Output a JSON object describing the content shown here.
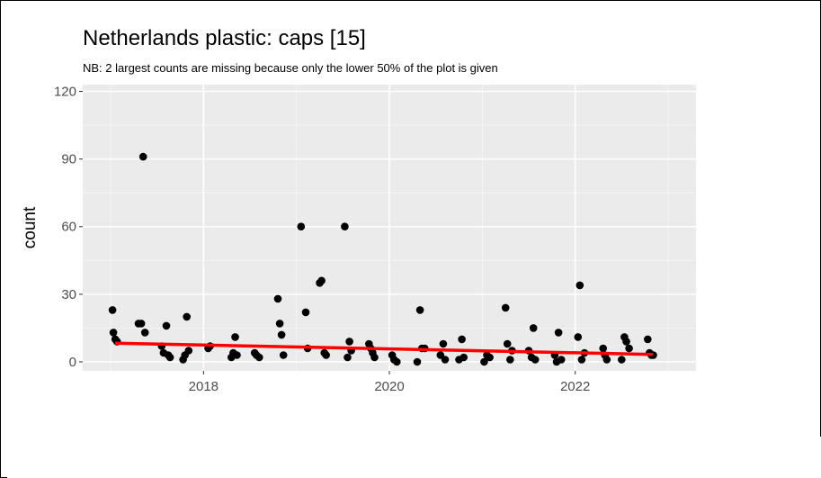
{
  "chart_data": {
    "type": "scatter",
    "title": "Netherlands  plastic: caps [15]",
    "subtitle": "NB: 2 largest counts are missing because only the lower 50% of the plot is given",
    "xlabel": "",
    "ylabel": "count",
    "xlim": [
      2016.7,
      2023.3
    ],
    "ylim": [
      -4,
      123
    ],
    "x_ticks": [
      2018,
      2020,
      2022
    ],
    "x_tick_labels": [
      "2018",
      "2020",
      "2022"
    ],
    "y_ticks": [
      0,
      30,
      60,
      90,
      120
    ],
    "y_tick_labels": [
      "0",
      "30",
      "60",
      "90",
      "120"
    ],
    "grid": true,
    "panel_background": "#ebebeb",
    "point_color": "#000000",
    "trend_color": "#ff0000",
    "points": [
      [
        2017.02,
        23
      ],
      [
        2017.03,
        13
      ],
      [
        2017.05,
        10
      ],
      [
        2017.07,
        9
      ],
      [
        2017.3,
        17
      ],
      [
        2017.33,
        17
      ],
      [
        2017.35,
        91
      ],
      [
        2017.37,
        13
      ],
      [
        2017.55,
        7
      ],
      [
        2017.57,
        4
      ],
      [
        2017.6,
        16
      ],
      [
        2017.62,
        3
      ],
      [
        2017.64,
        2
      ],
      [
        2017.78,
        1
      ],
      [
        2017.8,
        3
      ],
      [
        2017.82,
        20
      ],
      [
        2017.84,
        5
      ],
      [
        2018.05,
        6
      ],
      [
        2018.07,
        7
      ],
      [
        2018.3,
        2
      ],
      [
        2018.32,
        4
      ],
      [
        2018.34,
        11
      ],
      [
        2018.36,
        3
      ],
      [
        2018.55,
        4
      ],
      [
        2018.57,
        3
      ],
      [
        2018.6,
        2
      ],
      [
        2018.8,
        28
      ],
      [
        2018.82,
        17
      ],
      [
        2018.84,
        12
      ],
      [
        2018.86,
        3
      ],
      [
        2019.05,
        60
      ],
      [
        2019.1,
        22
      ],
      [
        2019.12,
        6
      ],
      [
        2019.25,
        35
      ],
      [
        2019.27,
        36
      ],
      [
        2019.3,
        4
      ],
      [
        2019.32,
        3
      ],
      [
        2019.52,
        60
      ],
      [
        2019.55,
        2
      ],
      [
        2019.57,
        9
      ],
      [
        2019.59,
        5
      ],
      [
        2019.78,
        8
      ],
      [
        2019.8,
        6
      ],
      [
        2019.82,
        4
      ],
      [
        2019.84,
        2
      ],
      [
        2020.03,
        3
      ],
      [
        2020.05,
        1
      ],
      [
        2020.08,
        0
      ],
      [
        2020.3,
        0
      ],
      [
        2020.33,
        23
      ],
      [
        2020.35,
        6
      ],
      [
        2020.38,
        6
      ],
      [
        2020.55,
        3
      ],
      [
        2020.58,
        8
      ],
      [
        2020.6,
        1
      ],
      [
        2020.75,
        1
      ],
      [
        2020.78,
        10
      ],
      [
        2020.8,
        2
      ],
      [
        2021.02,
        0
      ],
      [
        2021.05,
        3
      ],
      [
        2021.08,
        2
      ],
      [
        2021.25,
        24
      ],
      [
        2021.27,
        8
      ],
      [
        2021.3,
        1
      ],
      [
        2021.32,
        5
      ],
      [
        2021.5,
        5
      ],
      [
        2021.53,
        2
      ],
      [
        2021.55,
        15
      ],
      [
        2021.57,
        1
      ],
      [
        2021.78,
        3
      ],
      [
        2021.8,
        0
      ],
      [
        2021.82,
        13
      ],
      [
        2021.85,
        1
      ],
      [
        2022.03,
        11
      ],
      [
        2022.05,
        34
      ],
      [
        2022.07,
        1
      ],
      [
        2022.1,
        4
      ],
      [
        2022.3,
        6
      ],
      [
        2022.32,
        3
      ],
      [
        2022.34,
        1
      ],
      [
        2022.5,
        1
      ],
      [
        2022.53,
        11
      ],
      [
        2022.55,
        9
      ],
      [
        2022.58,
        6
      ],
      [
        2022.78,
        10
      ],
      [
        2022.8,
        4
      ],
      [
        2022.82,
        3
      ],
      [
        2022.84,
        3
      ]
    ],
    "trend_line": [
      [
        2017.05,
        8.3
      ],
      [
        2022.84,
        3.3
      ]
    ]
  }
}
